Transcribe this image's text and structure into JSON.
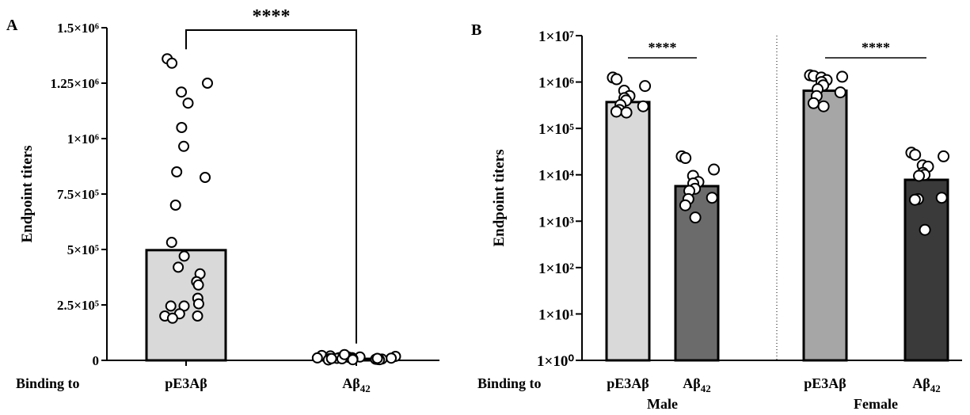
{
  "chart_data": [
    {
      "type": "bar",
      "panel_label": "A",
      "ylabel": "Endpoint titers",
      "x_prefix": "Binding to",
      "ylim": [
        0,
        1500000
      ],
      "yticks": [
        0,
        250000,
        500000,
        750000,
        1000000,
        1250000,
        1500000
      ],
      "ytick_labels": [
        "0",
        "2.5×10⁵",
        "5×10⁵",
        "7.5×10⁵",
        "1×10⁶",
        "1.25×10⁶",
        "1.5×10⁶"
      ],
      "categories": [
        {
          "label": "pE3Aβ",
          "sub": ""
        },
        {
          "label": "Aβ",
          "sub": "42"
        }
      ],
      "bars": [
        {
          "category": 0,
          "value": 497000,
          "fill": "#d9d9d9"
        },
        {
          "category": 1,
          "value": 7000,
          "fill": "#d9d9d9"
        }
      ],
      "points": [
        [
          1360000,
          1340000,
          1250000,
          1210000,
          1160000,
          1050000,
          965000,
          850000,
          825000,
          700000,
          532000,
          470000,
          420000,
          390000,
          355000,
          340000,
          280000,
          255000,
          245000,
          245000,
          210000,
          200000,
          200000,
          190000
        ],
        [
          22000,
          20000,
          18000,
          16000,
          15000,
          14000,
          12000,
          12000,
          10000,
          9000,
          8000,
          7000,
          7000,
          6000,
          5000,
          5000,
          4000,
          3000,
          3000,
          2000,
          26000,
          11000,
          9000,
          8000
        ]
      ],
      "significance": [
        {
          "from": 0,
          "to": 1,
          "label": "****"
        }
      ]
    },
    {
      "type": "bar",
      "panel_label": "B",
      "ylabel": "Endpoint titers",
      "x_prefix": "Binding to",
      "yscale": "log",
      "ylim": [
        1,
        10000000
      ],
      "ytick_labels": [
        "1×10⁰",
        "1×10¹",
        "1×10²",
        "1×10³",
        "1×10⁴",
        "1×10⁵",
        "1×10⁶",
        "1×10⁷"
      ],
      "categories": [
        {
          "label": "pE3Aβ",
          "sub": ""
        },
        {
          "label": "Aβ",
          "sub": "42"
        },
        {
          "label": "pE3Aβ",
          "sub": ""
        },
        {
          "label": "Aβ",
          "sub": "42"
        }
      ],
      "groups": [
        "Male",
        "Female"
      ],
      "bars": [
        {
          "category": 0,
          "group": "Male",
          "value": 370000,
          "fill": "#d9d9d9"
        },
        {
          "category": 1,
          "group": "Male",
          "value": 5700,
          "fill": "#6b6b6b"
        },
        {
          "category": 2,
          "group": "Female",
          "value": 650000,
          "fill": "#a6a6a6"
        },
        {
          "category": 3,
          "group": "Female",
          "value": 7800,
          "fill": "#3a3a3a"
        }
      ],
      "points": [
        [
          1250000,
          1150000,
          820000,
          650000,
          500000,
          450000,
          400000,
          320000,
          300000,
          250000,
          230000,
          220000
        ],
        [
          25000,
          23000,
          13000,
          9500,
          7000,
          6500,
          5000,
          4500,
          3200,
          3000,
          2200,
          1200
        ],
        [
          1400000,
          1350000,
          1300000,
          1250000,
          1100000,
          1000000,
          850000,
          700000,
          600000,
          500000,
          350000,
          300000
        ],
        [
          30000,
          27000,
          25000,
          16000,
          15000,
          11000,
          10000,
          9500,
          3200,
          3000,
          2900,
          650
        ]
      ],
      "significance": [
        {
          "from": 0,
          "to": 1,
          "label": "****"
        },
        {
          "from": 2,
          "to": 3,
          "label": "****"
        }
      ]
    }
  ]
}
